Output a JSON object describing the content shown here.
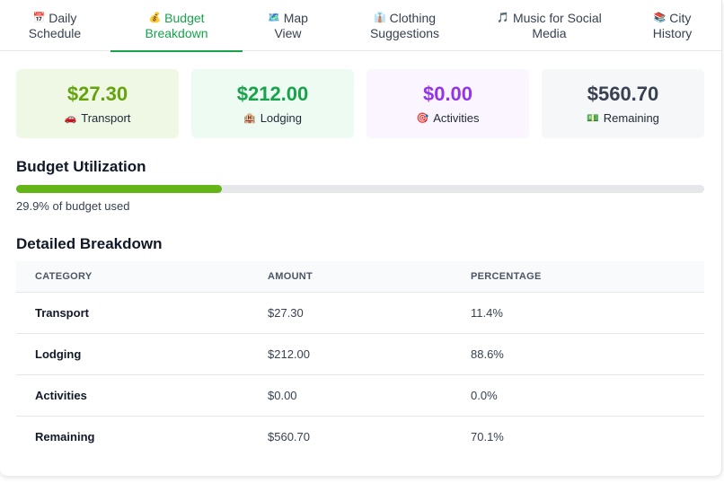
{
  "tabs": [
    {
      "icon": "📅",
      "line1": "Daily",
      "line2": "Schedule",
      "active": false
    },
    {
      "icon": "💰",
      "line1": "Budget",
      "line2": "Breakdown",
      "active": true
    },
    {
      "icon": "🗺️",
      "line1": "Map",
      "line2": "View",
      "active": false
    },
    {
      "icon": "👔",
      "line1": "Clothing",
      "line2": "Suggestions",
      "active": false
    },
    {
      "icon": "🎵",
      "line1": "Music for Social",
      "line2": "Media",
      "active": false
    },
    {
      "icon": "📚",
      "line1": "City",
      "line2": "History",
      "active": false
    }
  ],
  "stats": [
    {
      "value": "$27.30",
      "icon": "🚗",
      "label": "Transport",
      "bg": "#eef8e4",
      "color": "#65a30d"
    },
    {
      "value": "$212.00",
      "icon": "🏨",
      "label": "Lodging",
      "bg": "#eefbf3",
      "color": "#16a34a"
    },
    {
      "value": "$0.00",
      "icon": "🎯",
      "label": "Activities",
      "bg": "#faf5ff",
      "color": "#9333ea"
    },
    {
      "value": "$560.70",
      "icon": "💵",
      "label": "Remaining",
      "bg": "#f6f7f9",
      "color": "#374151"
    }
  ],
  "utilization": {
    "title": "Budget Utilization",
    "percent": 29.9,
    "text": "29.9% of budget used"
  },
  "breakdown": {
    "title": "Detailed Breakdown",
    "headers": [
      "CATEGORY",
      "AMOUNT",
      "PERCENTAGE"
    ],
    "rows": [
      {
        "category": "Transport",
        "amount": "$27.30",
        "percentage": "11.4%"
      },
      {
        "category": "Lodging",
        "amount": "$212.00",
        "percentage": "88.6%"
      },
      {
        "category": "Activities",
        "amount": "$0.00",
        "percentage": "0.0%"
      },
      {
        "category": "Remaining",
        "amount": "$560.70",
        "percentage": "70.1%"
      }
    ]
  }
}
